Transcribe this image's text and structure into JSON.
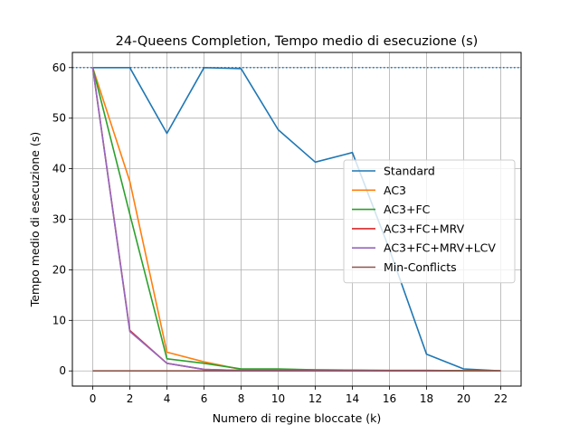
{
  "chart_data": {
    "type": "line",
    "title": "24-Queens Completion, Tempo medio di esecuzione (s)",
    "xlabel": "Numero di regine bloccate (k)",
    "ylabel": "Tempo medio di esecuzione (s)",
    "xlim": [
      -1.1,
      23.1
    ],
    "ylim": [
      -3,
      63
    ],
    "xticks": [
      0,
      2,
      4,
      6,
      8,
      10,
      12,
      14,
      16,
      18,
      20,
      22
    ],
    "yticks": [
      0,
      10,
      20,
      30,
      40,
      50,
      60
    ],
    "grid": true,
    "legend_position": "center-right",
    "reference_line": {
      "y": 60,
      "style": "dotted",
      "color": "#1f77b4"
    },
    "x": [
      0,
      2,
      4,
      6,
      8,
      10,
      12,
      14,
      16,
      18,
      20,
      22
    ],
    "series": [
      {
        "name": "Standard",
        "color": "#1f77b4",
        "values": [
          60,
          60,
          47,
          60,
          59.8,
          47.7,
          41.3,
          43.2,
          24,
          3.3,
          0.4,
          0
        ]
      },
      {
        "name": "AC3",
        "color": "#ff7f0e",
        "values": [
          60,
          37.5,
          3.7,
          1.8,
          0.3,
          0.3,
          0.2,
          0.15,
          0.1,
          0.1,
          0.05,
          0
        ]
      },
      {
        "name": "AC3+FC",
        "color": "#2ca02c",
        "values": [
          60,
          31,
          2.4,
          1.5,
          0.4,
          0.4,
          0.2,
          0.15,
          0.1,
          0.1,
          0.05,
          0
        ]
      },
      {
        "name": "AC3+FC+MRV",
        "color": "#d62728",
        "values": [
          60,
          8,
          1.5,
          0.3,
          0.1,
          0.1,
          0.1,
          0.1,
          0.05,
          0.05,
          0,
          0
        ]
      },
      {
        "name": "AC3+FC+MRV+LCV",
        "color": "#9467bd",
        "values": [
          60,
          7.8,
          1.5,
          0.3,
          0.1,
          0.1,
          0.1,
          0.1,
          0.05,
          0.05,
          0,
          0
        ]
      },
      {
        "name": "Min-Conflicts",
        "color": "#8c564b",
        "values": [
          0,
          0,
          0,
          0,
          0,
          0,
          0,
          0,
          0,
          0,
          0,
          0
        ]
      }
    ]
  }
}
